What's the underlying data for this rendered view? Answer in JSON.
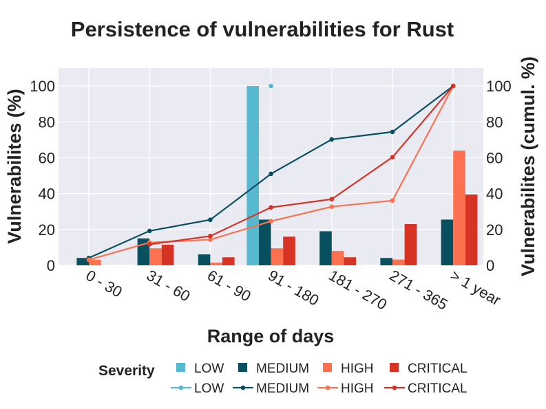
{
  "chart_data": {
    "type": "bar",
    "title": "Persistence of vulnerabilities for Rust",
    "xlabel": "Range of days",
    "ylabel": "Vulnerabilites (%)",
    "y2label": "Vulnerabilites (cumul. %)",
    "categories": [
      "0 - 30",
      "31 - 60",
      "61 - 90",
      "91 - 180",
      "181 - 270",
      "271 - 365",
      "> 1 year"
    ],
    "ylim": [
      0,
      110
    ],
    "y2lim": [
      0,
      110
    ],
    "yticks": [
      0,
      20,
      40,
      60,
      80,
      100
    ],
    "grid": true,
    "legend_title": "Severity",
    "colors": {
      "LOW": "#57b9d0",
      "MEDIUM": "#08505f",
      "HIGH": "#fc7150",
      "CRITICAL": "#d73325"
    },
    "bar_series": [
      {
        "name": "LOW",
        "values": [
          0,
          0,
          0,
          100,
          0,
          0,
          0
        ]
      },
      {
        "name": "MEDIUM",
        "values": [
          4.1,
          15,
          6.1,
          25.5,
          19,
          4.1,
          25.5
        ]
      },
      {
        "name": "HIGH",
        "values": [
          3.1,
          9.5,
          1.5,
          9.5,
          8,
          3.2,
          64
        ]
      },
      {
        "name": "CRITICAL",
        "values": [
          0,
          11.5,
          4.5,
          16,
          4.5,
          23,
          39.5
        ]
      }
    ],
    "line_series": [
      {
        "name": "LOW",
        "values": [
          null,
          null,
          null,
          100,
          null,
          null,
          null
        ]
      },
      {
        "name": "MEDIUM",
        "values": [
          4.1,
          19.2,
          25.4,
          51,
          70.2,
          74.4,
          100
        ]
      },
      {
        "name": "HIGH",
        "values": [
          3.1,
          12.7,
          14.3,
          24.6,
          32.7,
          36.1,
          100
        ]
      },
      {
        "name": "CRITICAL",
        "values": [
          null,
          11.7,
          16.3,
          32.3,
          36.9,
          60.3,
          100
        ]
      }
    ]
  }
}
